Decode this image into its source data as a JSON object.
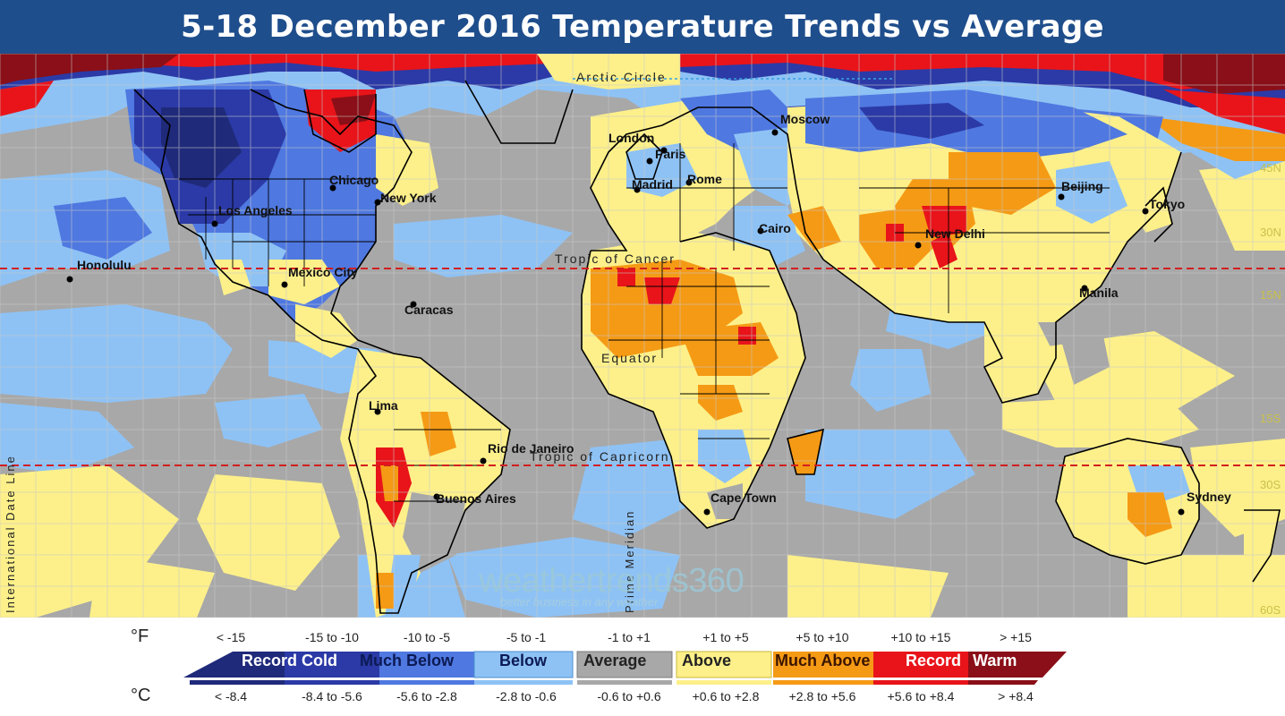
{
  "title": "5-18 December 2016 Temperature Trends vs Average",
  "map": {
    "cities": [
      {
        "name": "Honolulu"
      },
      {
        "name": "Los Angeles"
      },
      {
        "name": "Chicago"
      },
      {
        "name": "New York"
      },
      {
        "name": "Mexico City"
      },
      {
        "name": "Caracas"
      },
      {
        "name": "Lima"
      },
      {
        "name": "Rio de Janeiro"
      },
      {
        "name": "Buenos Aires"
      },
      {
        "name": "London"
      },
      {
        "name": "Paris"
      },
      {
        "name": "Madrid"
      },
      {
        "name": "Rome"
      },
      {
        "name": "Moscow"
      },
      {
        "name": "Cairo"
      },
      {
        "name": "New Delhi"
      },
      {
        "name": "Beijing"
      },
      {
        "name": "Tokyo"
      },
      {
        "name": "Manila"
      },
      {
        "name": "Cape Town"
      },
      {
        "name": "Sydney"
      }
    ],
    "reference_lines": {
      "arctic_circle": "Arctic Circle",
      "tropic_of_cancer": "Tropic of Cancer",
      "equator": "Equator",
      "tropic_of_capricorn": "Tropic of Capricorn",
      "prime_meridian": "Prime Meridian",
      "date_line": "International Date Line"
    },
    "latitude_labels": [
      "45N",
      "30N",
      "15N",
      "15S",
      "30S",
      "60S"
    ]
  },
  "watermark": {
    "brand": "weathertrends360",
    "tagline": "better business in any weather"
  },
  "legend": {
    "fahrenheit_unit": "°F",
    "celsius_unit": "°C",
    "fahrenheit_ranges": [
      "< -15",
      "-15 to -10",
      "-10 to -5",
      "-5 to -1",
      "-1 to +1",
      "+1 to +5",
      "+5 to +10",
      "+10 to +15",
      "> +15"
    ],
    "celsius_ranges": [
      "< -8.4",
      "-8.4 to -5.6",
      "-5.6 to -2.8",
      "-2.8 to -0.6",
      "-0.6 to +0.6",
      "+0.6 to +2.8",
      "+2.8 to +5.6",
      "+5.6 to +8.4",
      "> +8.4"
    ],
    "categories": [
      "Record Cold",
      "Much Below",
      "Below",
      "Average",
      "Above",
      "Much Above",
      "Record",
      "Warm"
    ],
    "colors": {
      "record_cold_dark": "#1f2a7a",
      "record_cold": "#2b3aa6",
      "much_below": "#4f78e0",
      "below": "#8ec2f5",
      "average": "#a8a8a8",
      "above": "#fdf08a",
      "much_above": "#f59a15",
      "record_warm": "#e8141a",
      "record_warm_dark": "#8a0f18"
    }
  }
}
